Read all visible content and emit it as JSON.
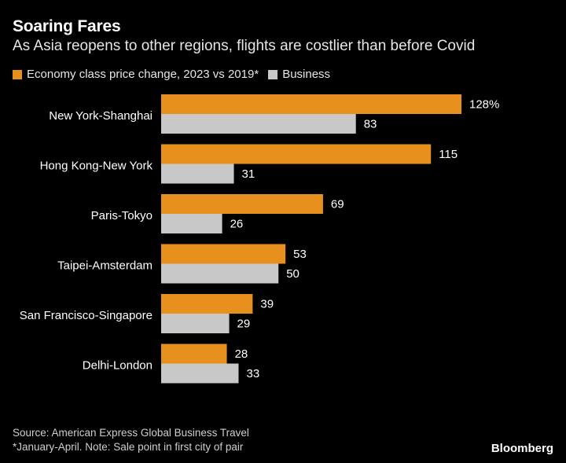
{
  "title": "Soaring Fares",
  "subtitle": "As Asia reopens to other regions, flights are costlier than before Covid",
  "legend": [
    {
      "label": "Economy class price change, 2023 vs 2019*",
      "color": "#E8901E"
    },
    {
      "label": "Business",
      "color": "#C8C8C8"
    }
  ],
  "chart_data": {
    "type": "bar",
    "orientation": "horizontal",
    "categories": [
      "New York-Shanghai",
      "Hong Kong-New York",
      "Paris-Tokyo",
      "Taipei-Amsterdam",
      "San Francisco-Singapore",
      "Delhi-London"
    ],
    "series": [
      {
        "name": "Economy class price change, 2023 vs 2019*",
        "color": "#E8901E",
        "values": [
          128,
          115,
          69,
          53,
          39,
          28
        ],
        "labels": [
          "128%",
          "115",
          "69",
          "53",
          "39",
          "28"
        ]
      },
      {
        "name": "Business",
        "color": "#C8C8C8",
        "values": [
          83,
          31,
          26,
          50,
          29,
          33
        ],
        "labels": [
          "83",
          "31",
          "26",
          "50",
          "29",
          "33"
        ]
      }
    ],
    "xlim": [
      0,
      128
    ],
    "grid": false,
    "legend_position": "top-left"
  },
  "footer": {
    "source": "Source: American Express Global Business Travel",
    "note": "*January-April. Note: Sale point in first city of pair"
  },
  "brand": "Bloomberg"
}
